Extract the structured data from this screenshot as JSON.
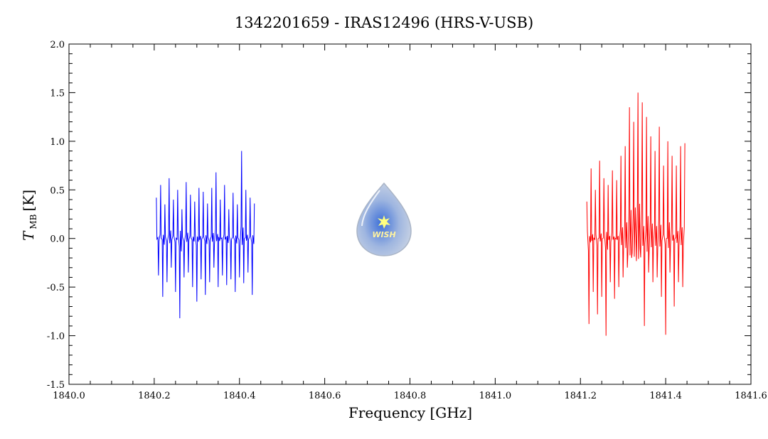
{
  "chart_data": {
    "type": "line",
    "title": "1342201659 - IRAS12496 (HRS-V-USB)",
    "xlabel": "Frequency [GHz]",
    "ylabel_main": "T",
    "ylabel_sub": "MB",
    "ylabel_unit": "[K]",
    "xlim": [
      1840.0,
      1841.6
    ],
    "ylim": [
      -1.5,
      2.0
    ],
    "xticks": [
      1840.0,
      1840.2,
      1840.4,
      1840.6,
      1840.8,
      1841.0,
      1841.2,
      1841.4,
      1841.6
    ],
    "xtick_labels": [
      "1840.0",
      "1840.2",
      "1840.4",
      "1840.6",
      "1840.8",
      "1841.0",
      "1841.2",
      "1841.4",
      "1841.6"
    ],
    "yticks": [
      -1.5,
      -1.0,
      -0.5,
      0.0,
      0.5,
      1.0,
      1.5,
      2.0
    ],
    "ytick_labels": [
      "-1.5",
      "-1.0",
      "-0.5",
      "0.0",
      "0.5",
      "1.0",
      "1.5",
      "2.0"
    ],
    "grid": false,
    "series": [
      {
        "color": "#0000ff",
        "x": [
          1840.205,
          1840.21,
          1840.215,
          1840.22,
          1840.225,
          1840.23,
          1840.235,
          1840.24,
          1840.245,
          1840.25,
          1840.255,
          1840.26,
          1840.265,
          1840.27,
          1840.275,
          1840.28,
          1840.285,
          1840.29,
          1840.295,
          1840.3,
          1840.305,
          1840.31,
          1840.315,
          1840.32,
          1840.325,
          1840.33,
          1840.335,
          1840.34,
          1840.345,
          1840.35,
          1840.355,
          1840.36,
          1840.365,
          1840.37,
          1840.375,
          1840.38,
          1840.385,
          1840.39,
          1840.395,
          1840.4,
          1840.405,
          1840.41,
          1840.415,
          1840.42,
          1840.425,
          1840.43,
          1840.435
        ],
        "y": [
          0.42,
          -0.38,
          0.55,
          -0.6,
          0.35,
          -0.45,
          0.62,
          -0.3,
          0.4,
          -0.55,
          0.5,
          -0.82,
          0.3,
          -0.4,
          0.58,
          -0.35,
          0.45,
          -0.5,
          0.38,
          -0.65,
          0.52,
          -0.42,
          0.48,
          -0.58,
          0.36,
          -0.45,
          0.52,
          -0.3,
          0.68,
          -0.5,
          0.4,
          -0.38,
          0.55,
          -0.48,
          0.3,
          -0.42,
          0.47,
          -0.55,
          0.35,
          -0.4,
          0.9,
          -0.46,
          0.5,
          -0.35,
          0.42,
          -0.58,
          0.36
        ]
      },
      {
        "color": "#ff0000",
        "x": [
          1841.215,
          1841.22,
          1841.225,
          1841.23,
          1841.235,
          1841.24,
          1841.245,
          1841.25,
          1841.255,
          1841.26,
          1841.265,
          1841.27,
          1841.275,
          1841.28,
          1841.285,
          1841.29,
          1841.295,
          1841.3,
          1841.305,
          1841.31,
          1841.315,
          1841.32,
          1841.325,
          1841.33,
          1841.335,
          1841.34,
          1841.345,
          1841.35,
          1841.355,
          1841.36,
          1841.365,
          1841.37,
          1841.375,
          1841.38,
          1841.385,
          1841.39,
          1841.395,
          1841.4,
          1841.405,
          1841.41,
          1841.415,
          1841.42,
          1841.425,
          1841.43,
          1841.435,
          1841.44,
          1841.445
        ],
        "y": [
          0.38,
          -0.88,
          0.72,
          -0.55,
          0.5,
          -0.78,
          0.8,
          -0.6,
          0.62,
          -1.0,
          0.55,
          -0.45,
          0.7,
          -0.62,
          0.6,
          -0.5,
          0.85,
          -0.4,
          0.95,
          -0.3,
          1.35,
          -0.2,
          1.2,
          0.05,
          1.5,
          -0.1,
          1.4,
          -0.9,
          1.25,
          -0.35,
          1.05,
          -0.45,
          0.9,
          -0.4,
          1.15,
          -0.6,
          0.75,
          -0.99,
          1.0,
          -0.35,
          0.85,
          -0.7,
          0.75,
          -0.45,
          0.95,
          -0.5,
          0.98
        ]
      }
    ]
  }
}
